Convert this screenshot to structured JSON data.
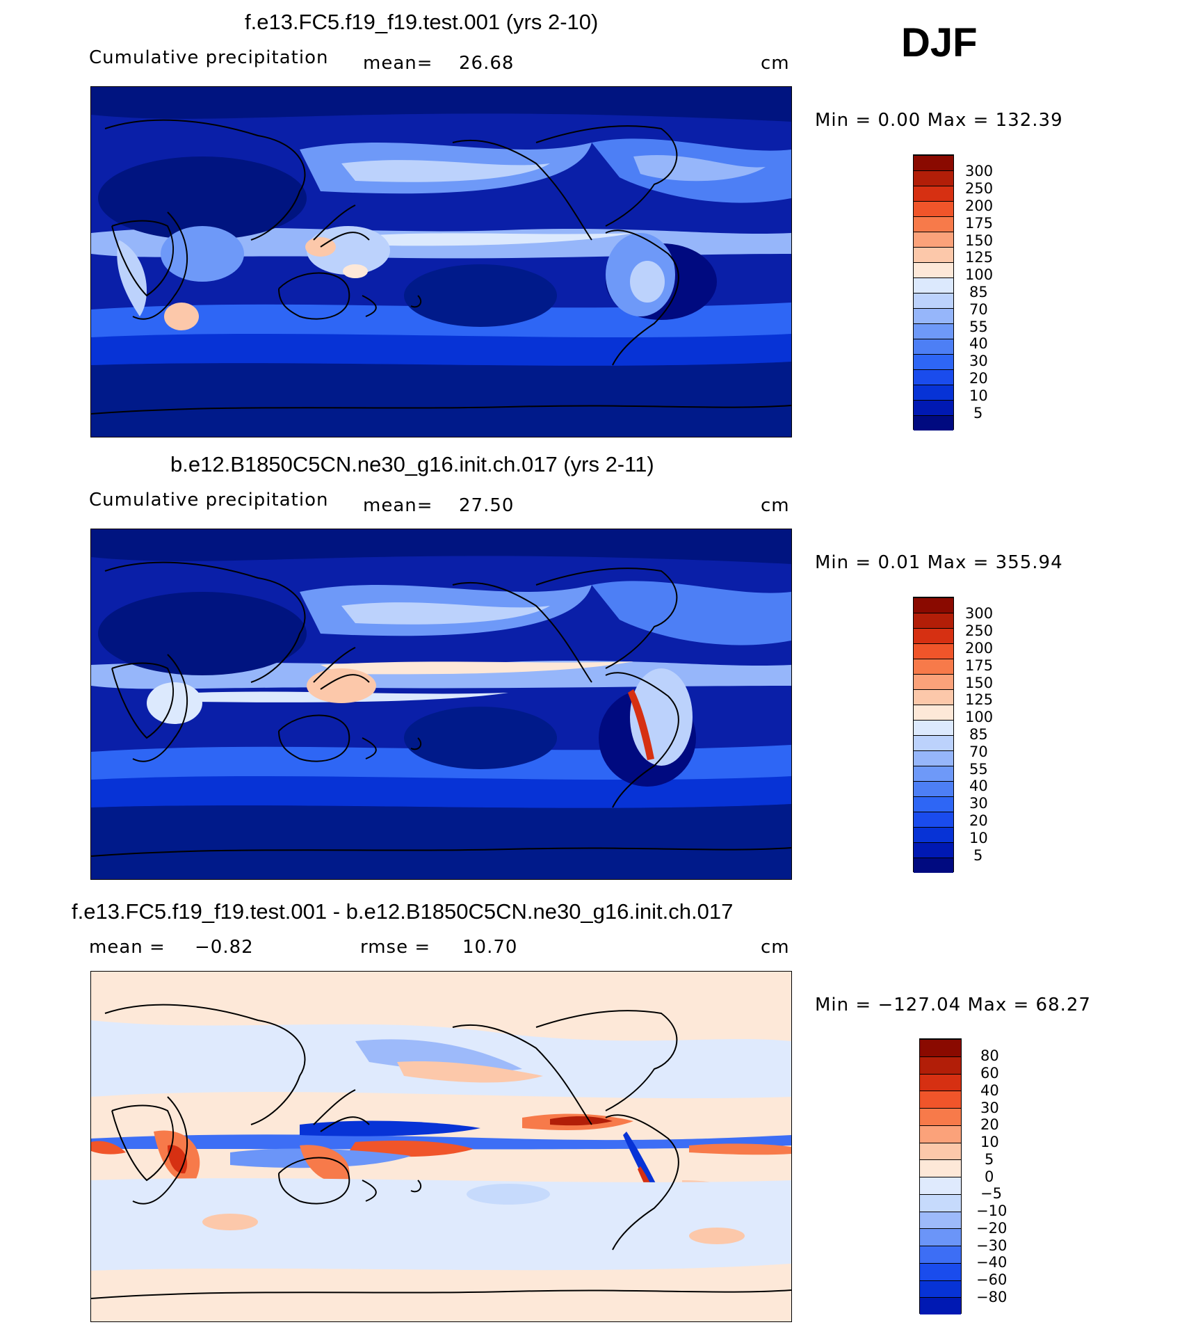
{
  "season": "DJF",
  "colors": {
    "abs_scale": [
      "#000a80",
      "#0019b3",
      "#0733d6",
      "#1a4ced",
      "#2e66f5",
      "#4d7ff5",
      "#6e99f8",
      "#96b6fa",
      "#bcd2fc",
      "#dce9fd",
      "#fde8d8",
      "#fcc8aa",
      "#fba27a",
      "#f77a4a",
      "#f0552a",
      "#d63012",
      "#b21e08",
      "#8a0a00"
    ],
    "diff_scale": [
      "#000a80",
      "#0019b3",
      "#0733d6",
      "#1a4ced",
      "#3d6ef5",
      "#6b95f8",
      "#9dbafa",
      "#c6dafc",
      "#dfeafd",
      "#fde8d8",
      "#fcc8aa",
      "#fba27a",
      "#f77a4a",
      "#f0552a",
      "#d63012",
      "#b21e08",
      "#8a0a00"
    ]
  },
  "panels": [
    {
      "title": "f.e13.FC5.f19_f19.test.001 (yrs 2-10)",
      "left_label": "Cumulative precipitation",
      "mid_label": "mean=",
      "mid_value": "26.68",
      "unit": "cm",
      "minmax": "Min =    0.00  Max =  132.39",
      "ticks": [
        "300",
        "250",
        "200",
        "175",
        "150",
        "125",
        "100",
        "85",
        "70",
        "55",
        "40",
        "30",
        "20",
        "10",
        "5"
      ]
    },
    {
      "title": "b.e12.B1850C5CN.ne30_g16.init.ch.017 (yrs 2-11)",
      "left_label": "Cumulative precipitation",
      "mid_label": "mean=",
      "mid_value": "27.50",
      "unit": "cm",
      "minmax": "Min =    0.01  Max =  355.94",
      "ticks": [
        "300",
        "250",
        "200",
        "175",
        "150",
        "125",
        "100",
        "85",
        "70",
        "55",
        "40",
        "30",
        "20",
        "10",
        "5"
      ]
    },
    {
      "title": "f.e13.FC5.f19_f19.test.001 - b.e12.B1850C5CN.ne30_g16.init.ch.017",
      "left_label": "mean =",
      "left_value": "−0.82",
      "mid_label": "rmse =",
      "mid_value": "10.70",
      "unit": "cm",
      "minmax": "Min = −127.04  Max =   68.27",
      "ticks": [
        "80",
        "60",
        "40",
        "30",
        "20",
        "10",
        "5",
        "0",
        "−5",
        "−10",
        "−20",
        "−30",
        "−40",
        "−60",
        "−80"
      ]
    }
  ]
}
